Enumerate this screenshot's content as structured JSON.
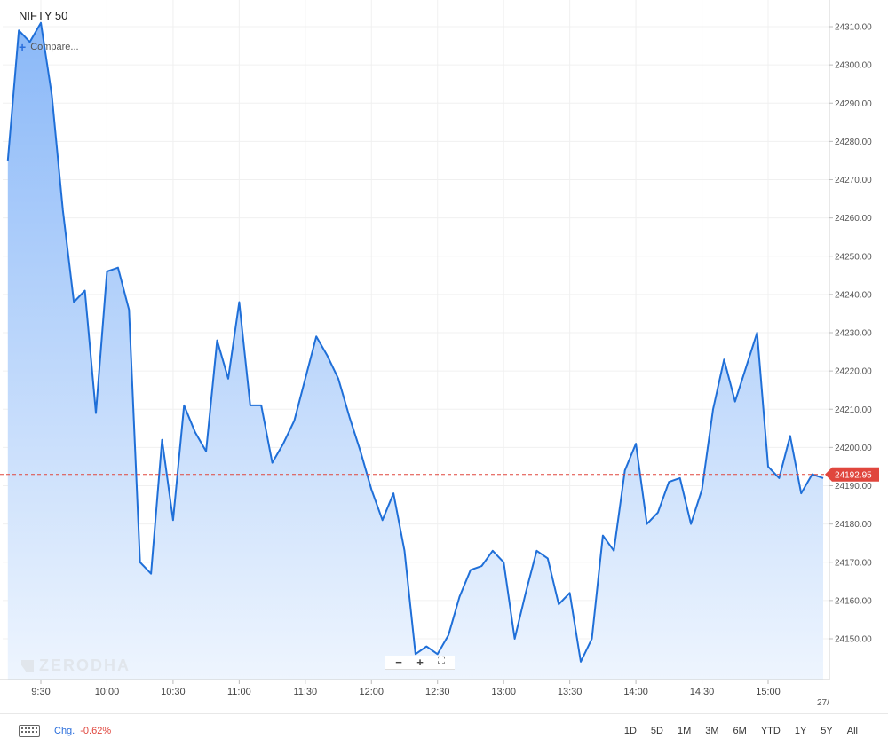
{
  "header": {
    "title": "NIFTY 50",
    "compare_label": "Compare..."
  },
  "watermark": "ZERODHA",
  "zoom_controls": [
    "−",
    "+",
    "⛶"
  ],
  "footer": {
    "chg_label": "Chg.",
    "chg_value": "-0.62%",
    "ranges": [
      "1D",
      "5D",
      "1M",
      "3M",
      "6M",
      "YTD",
      "1Y",
      "5Y",
      "All"
    ],
    "cut_label": "27/"
  },
  "colors": {
    "line": "#1f6fd8",
    "area_top": "#8ab8f8",
    "area_bottom": "#eef5fe",
    "last_price_line": "#e0463d",
    "chg_negative": "#e0463d",
    "accent": "#2b6fdc"
  },
  "chart_data": {
    "type": "area",
    "grid": true,
    "ylim": [
      24140,
      24315
    ],
    "y_ticks": [
      "24150.00",
      "24160.00",
      "24170.00",
      "24180.00",
      "24190.00",
      "24200.00",
      "24210.00",
      "24220.00",
      "24230.00",
      "24240.00",
      "24250.00",
      "24260.00",
      "24270.00",
      "24280.00",
      "24290.00",
      "24300.00",
      "24310.00"
    ],
    "x_ticks": [
      "9:30",
      "10:00",
      "10:30",
      "11:00",
      "11:30",
      "12:00",
      "12:30",
      "13:00",
      "13:30",
      "14:00",
      "14:30",
      "15:00"
    ],
    "last_price": 24192.95,
    "last_price_label": "24192.95",
    "series": [
      {
        "x": [
          "09:15",
          "09:20",
          "09:25",
          "09:30",
          "09:35",
          "09:40",
          "09:45",
          "09:50",
          "09:55",
          "10:00",
          "10:05",
          "10:10",
          "10:15",
          "10:20",
          "10:25",
          "10:30",
          "10:35",
          "10:40",
          "10:45",
          "10:50",
          "10:55",
          "11:00",
          "11:05",
          "11:10",
          "11:15",
          "11:20",
          "11:25",
          "11:30",
          "11:35",
          "11:40",
          "11:45",
          "11:50",
          "11:55",
          "12:00",
          "12:05",
          "12:10",
          "12:15",
          "12:20",
          "12:25",
          "12:30",
          "12:35",
          "12:40",
          "12:45",
          "12:50",
          "12:55",
          "13:00",
          "13:05",
          "13:10",
          "13:15",
          "13:20",
          "13:25",
          "13:30",
          "13:35",
          "13:40",
          "13:45",
          "13:50",
          "13:55",
          "14:00",
          "14:05",
          "14:10",
          "14:15",
          "14:20",
          "14:25",
          "14:30",
          "14:35",
          "14:40",
          "14:45",
          "14:50",
          "14:55",
          "15:00",
          "15:05",
          "15:10",
          "15:15",
          "15:20",
          "15:25"
        ],
        "values": [
          24275,
          24309,
          24306,
          24311,
          24292,
          24262,
          24238,
          24241,
          24209,
          24246,
          24247,
          24236,
          24170,
          24167,
          24202,
          24181,
          24211,
          24204,
          24199,
          24228,
          24218,
          24238,
          24211,
          24211,
          24196,
          24201,
          24207,
          24218,
          24229,
          24224,
          24218,
          24208,
          24199,
          24189,
          24181,
          24188,
          24173,
          24146,
          24148,
          24146,
          24151,
          24161,
          24168,
          24169,
          24173,
          24170,
          24150,
          24162,
          24173,
          24171,
          24159,
          24162,
          24144,
          24150,
          24177,
          24173,
          24194,
          24201,
          24180,
          24183,
          24191,
          24192,
          24180,
          24189,
          24210,
          24223,
          24212,
          24221,
          24230,
          24195,
          24192,
          24203,
          24188,
          24193,
          24192
        ]
      }
    ]
  }
}
